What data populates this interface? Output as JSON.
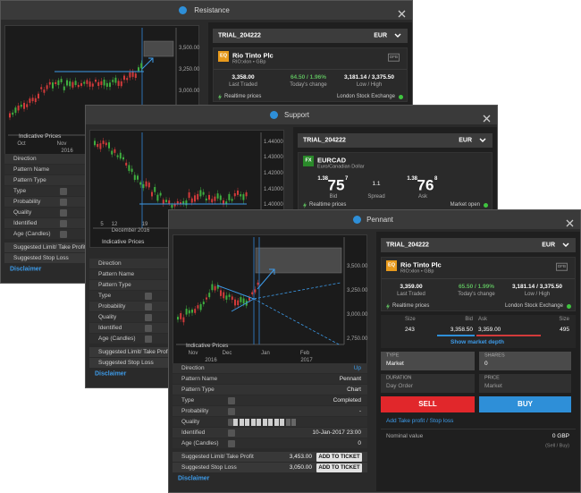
{
  "windows": [
    {
      "title": "Resistance",
      "chart": {
        "yticks": [
          "3,500.00",
          "3,250.00",
          "3,000.00"
        ],
        "xticks": [
          "Oct",
          "Nov"
        ],
        "years": [
          "2016"
        ],
        "caption": "Indicative Prices"
      },
      "details": [
        {
          "label": "Direction"
        },
        {
          "label": "Pattern Name"
        },
        {
          "label": "Pattern Type"
        },
        {
          "label": "Type"
        },
        {
          "label": "Probability"
        },
        {
          "label": "Quality"
        },
        {
          "label": "Identified"
        },
        {
          "label": "Age (Candles)"
        }
      ],
      "suggested": [
        {
          "label": "Suggested Limit/ Take Profit"
        },
        {
          "label": "Suggested Stop Loss"
        }
      ],
      "disclaimer": "Disclaimer",
      "account": "TRIAL_204222",
      "currency": "EUR",
      "instrument": {
        "badge": "EQ",
        "name": "Rio Tinto Plc",
        "code": "RIO:xlon • GBp",
        "tag": "DFB"
      },
      "quote": [
        {
          "value": "3,358.00",
          "label": "Last Traded"
        },
        {
          "value": "64.50 / 1.96%",
          "label": "Today's change"
        },
        {
          "value": "3,181.14 / 3,375.50",
          "label": "Low / High"
        }
      ],
      "realtime": "Realtime prices",
      "exchange": "London Stock Exchange"
    },
    {
      "title": "Support",
      "chart": {
        "yticks": [
          "1.44000",
          "1.43000",
          "1.42000",
          "1.41000",
          "1.40000"
        ],
        "xticks": [
          "5",
          "12",
          "19"
        ],
        "years": [
          "December 2016"
        ],
        "caption": "Indicative Prices"
      },
      "details": [
        {
          "label": "Direction"
        },
        {
          "label": "Pattern Name"
        },
        {
          "label": "Pattern Type"
        },
        {
          "label": "Type"
        },
        {
          "label": "Probability"
        },
        {
          "label": "Quality"
        },
        {
          "label": "Identified"
        },
        {
          "label": "Age (Candles)"
        }
      ],
      "suggested": [
        {
          "label": "Suggested Limit/ Take Profit"
        },
        {
          "label": "Suggested Stop Loss"
        }
      ],
      "disclaimer": "Disclaimer",
      "account": "TRIAL_204222",
      "currency": "EUR",
      "instrument": {
        "badge": "FX",
        "name": "EURCAD",
        "code": "Euro/Canadian Dollar"
      },
      "prices": {
        "bid": {
          "big": "1.38",
          "main": "75",
          "pip": "7",
          "label": "Bid"
        },
        "spread": {
          "value": "1.1",
          "label": "Spread"
        },
        "ask": {
          "big": "1.38",
          "main": "76",
          "pip": "8",
          "label": "Ask"
        }
      },
      "realtime": "Realtime prices",
      "exchange": "Market open"
    },
    {
      "title": "Pennant",
      "chart": {
        "yticks": [
          "3,500.00",
          "3,250.00",
          "3,000.00",
          "2,750.00"
        ],
        "xticks": [
          "Nov",
          "Dec",
          "Jan",
          "Feb"
        ],
        "years": [
          "2016",
          "2017"
        ],
        "caption": "Indicative Prices"
      },
      "details": [
        {
          "label": "Direction",
          "value": "Up"
        },
        {
          "label": "Pattern Name",
          "value": "Pennant"
        },
        {
          "label": "Pattern Type",
          "value": "Chart"
        },
        {
          "label": "Type",
          "value": "Completed"
        },
        {
          "label": "Probability",
          "value": "-"
        },
        {
          "label": "Quality"
        },
        {
          "label": "Identified",
          "value": "10-Jan-2017 23:00"
        },
        {
          "label": "Age (Candles)",
          "value": "0"
        }
      ],
      "suggested": [
        {
          "label": "Suggested Limit/ Take Profit",
          "value": "3,453.00",
          "action": "ADD TO TICKET"
        },
        {
          "label": "Suggested Stop Loss",
          "value": "3,050.00",
          "action": "ADD TO TICKET"
        }
      ],
      "disclaimer": "Disclaimer",
      "account": "TRIAL_204222",
      "currency": "EUR",
      "instrument": {
        "badge": "EQ",
        "name": "Rio Tinto Plc",
        "code": "RIO:xlon • GBp",
        "tag": "DFB"
      },
      "quote": [
        {
          "value": "3,359.00",
          "label": "Last Traded"
        },
        {
          "value": "65.50 / 1.99%",
          "label": "Today's change"
        },
        {
          "value": "3,181.14 / 3,375.50",
          "label": "Low / High"
        }
      ],
      "realtime": "Realtime prices",
      "exchange": "London Stock Exchange",
      "depth": {
        "headers": [
          "Size",
          "Bid",
          "Ask",
          "Size"
        ],
        "values": [
          "243",
          "3,358.50",
          "3,359.00",
          "495"
        ],
        "link": "Show market depth"
      },
      "order": [
        {
          "label": "TYPE",
          "value": "Market"
        },
        {
          "label": "SHARES",
          "value": "0"
        },
        {
          "label": "DURATION",
          "value": "Day Order"
        },
        {
          "label": "PRICE",
          "value": "Market"
        }
      ],
      "actions": [
        "SELL",
        "BUY"
      ],
      "take_profit": "Add Take profit / Stop loss",
      "nominal": {
        "label": "Nominal value",
        "value": "0 GBP",
        "note": "(Sell / Buy)"
      }
    }
  ]
}
